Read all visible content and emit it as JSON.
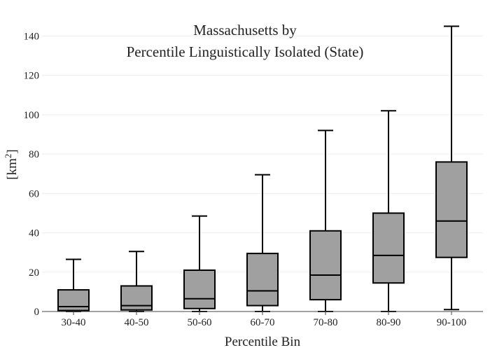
{
  "chart_data": {
    "type": "box",
    "title_lines": [
      "Massachusetts  by",
      "Percentile Linguistically Isolated (State)"
    ],
    "xlabel": "Percentile Bin",
    "ylabel_base": "[km",
    "ylabel_sup": "2",
    "ylabel_end": "]",
    "ylim": [
      0,
      150
    ],
    "yticks": [
      0,
      20,
      40,
      60,
      80,
      100,
      120,
      140
    ],
    "grid": true,
    "box_color": "#a0a0a0",
    "line_color": "#000000",
    "categories": [
      "30-40",
      "40-50",
      "50-60",
      "60-70",
      "70-80",
      "80-90",
      "90-100"
    ],
    "boxes": [
      {
        "category": "30-40",
        "min": 0,
        "q1": 0.5,
        "median": 2.5,
        "q3": 11,
        "max": 26.5
      },
      {
        "category": "40-50",
        "min": 0,
        "q1": 0.8,
        "median": 3,
        "q3": 13,
        "max": 30.5
      },
      {
        "category": "50-60",
        "min": 0,
        "q1": 1.5,
        "median": 6.5,
        "q3": 21,
        "max": 48.5
      },
      {
        "category": "60-70",
        "min": 0,
        "q1": 3,
        "median": 10.5,
        "q3": 29.5,
        "max": 69.5
      },
      {
        "category": "70-80",
        "min": 0,
        "q1": 6,
        "median": 18.5,
        "q3": 41,
        "max": 92
      },
      {
        "category": "80-90",
        "min": 0,
        "q1": 14.5,
        "median": 28.5,
        "q3": 50,
        "max": 102
      },
      {
        "category": "90-100",
        "min": 1,
        "q1": 27.5,
        "median": 46,
        "q3": 76,
        "max": 145
      }
    ]
  }
}
